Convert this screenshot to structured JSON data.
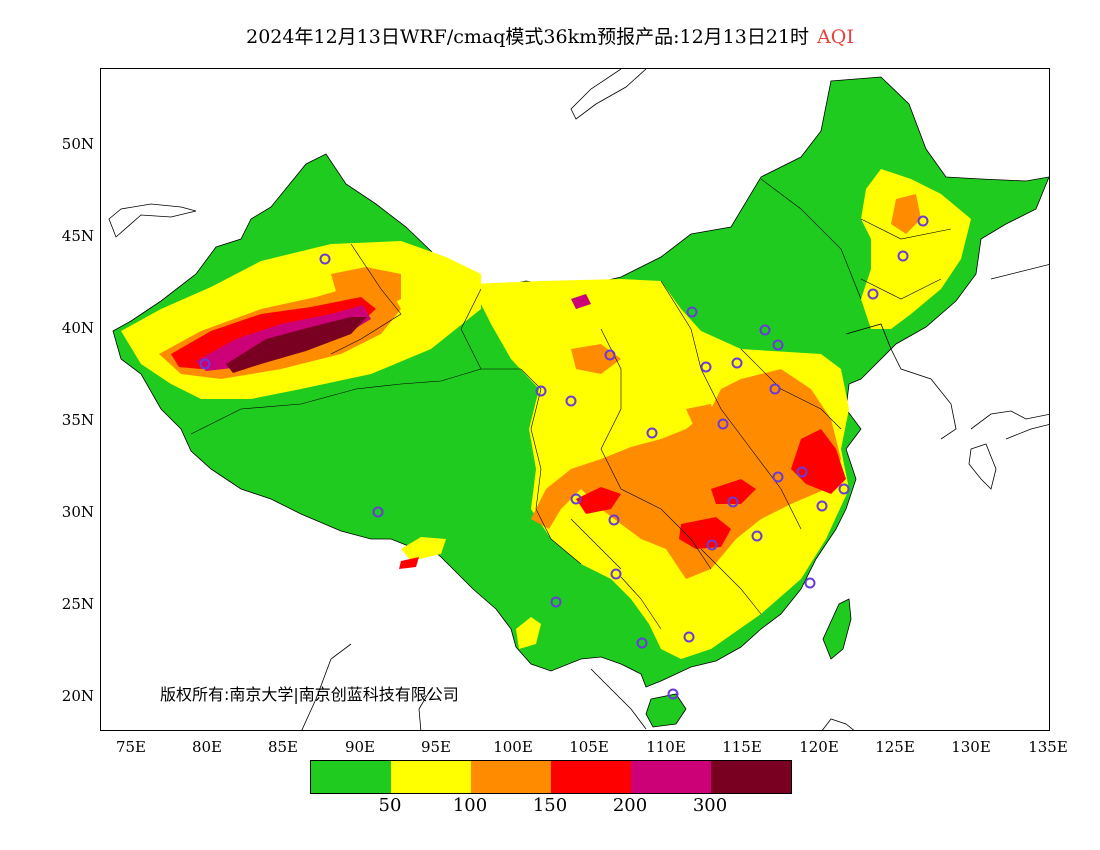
{
  "title": {
    "main": "2024年12月13日WRF/cmaq模式36km预报产品:12月13日21时",
    "variable": "AQI"
  },
  "lat_labels": [
    "50N",
    "45N",
    "40N",
    "35N",
    "30N",
    "25N",
    "20N"
  ],
  "lon_labels": [
    "75E",
    "80E",
    "85E",
    "90E",
    "95E",
    "100E",
    "105E",
    "110E",
    "115E",
    "120E",
    "125E",
    "130E",
    "135E"
  ],
  "copyright": "版权所有:南京大学|南京创蓝科技有限公司",
  "legend": {
    "colors": [
      "#1fcb1f",
      "#ffff00",
      "#ff8c00",
      "#ff0000",
      "#cc0077",
      "#7a0022"
    ],
    "labels": [
      "50",
      "100",
      "150",
      "200",
      "300"
    ]
  },
  "colors": {
    "aqi_variable": "#e8413a",
    "station_marker": "#6a3bd8"
  }
}
